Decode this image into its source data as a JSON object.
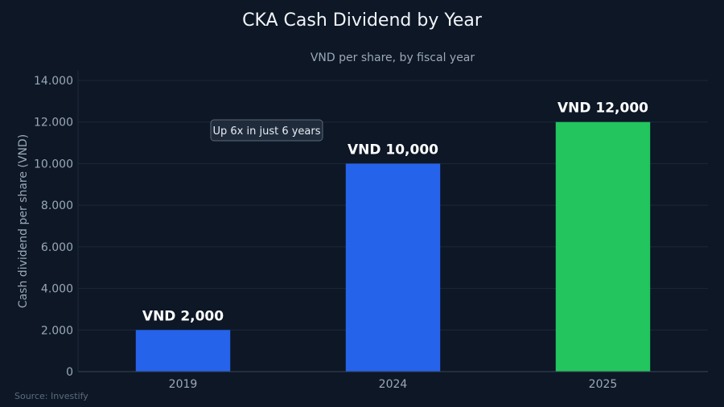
{
  "chart_data": {
    "type": "bar",
    "title": "CKA Cash Dividend by Year",
    "subtitle": "VND per share, by fiscal year",
    "xlabel": "",
    "ylabel": "Cash dividend per share (VND)",
    "categories": [
      "2019",
      "2024",
      "2025"
    ],
    "values": [
      2000,
      10000,
      12000
    ],
    "data_labels": [
      "VND 2,000",
      "VND 10,000",
      "VND 12,000"
    ],
    "colors": [
      "#2563eb",
      "#2563eb",
      "#22c55e"
    ],
    "ylim": [
      0,
      14000
    ],
    "yticks": [
      0,
      2000,
      4000,
      6000,
      8000,
      10000,
      12000,
      14000
    ],
    "ytick_labels": [
      "0",
      "2.000",
      "4.000",
      "6.000",
      "8.000",
      "10.000",
      "12.000",
      "14.000"
    ],
    "grid": true,
    "annotation": {
      "text": "Up 6x in just 6 years",
      "near_category": "2019",
      "y_value": 11500
    },
    "source": "Source: Investify"
  }
}
